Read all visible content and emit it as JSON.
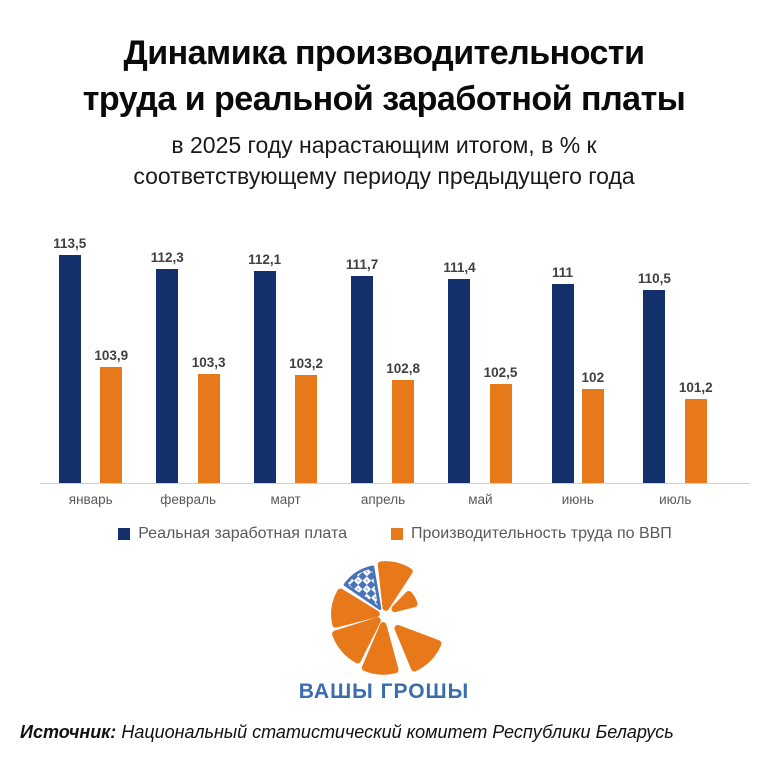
{
  "title": {
    "line1": "Динамика производительности",
    "line2": "труда и реальной заработной платы"
  },
  "subtitle": {
    "line1": "в 2025 году нарастающим итогом, в % к",
    "line2": "соответствующему периоду предыдущего года"
  },
  "chart_data": {
    "type": "bar",
    "title": "Динамика производительности труда и реальной заработной платы",
    "subtitle": "в 2025 году нарастающим итогом, в % к соответствующему периоду предыдущего года",
    "categories": [
      "январь",
      "февраль",
      "март",
      "апрель",
      "май",
      "июнь",
      "июль"
    ],
    "series": [
      {
        "name": "Реальная заработная плата",
        "color": "#13306b",
        "values": [
          113.5,
          112.3,
          112.1,
          111.7,
          111.4,
          111,
          110.5
        ],
        "labels": [
          "113,5",
          "112,3",
          "112,1",
          "111,7",
          "111,4",
          "111",
          "110,5"
        ]
      },
      {
        "name": "Производительность труда по ВВП",
        "color": "#e8791a",
        "values": [
          103.9,
          103.3,
          103.2,
          102.8,
          102.5,
          102,
          101.2
        ],
        "labels": [
          "103,9",
          "103,3",
          "103,2",
          "102,8",
          "102,5",
          "102",
          "101,2"
        ]
      }
    ],
    "xlabel": "",
    "ylabel": "",
    "axis_min": 94,
    "grid": false,
    "legend_position": "bottom",
    "data_labels": true
  },
  "colors": {
    "navy": "#13306b",
    "orange": "#e8791a",
    "logo_blue": "#3a6cae",
    "ornament_blue": "#4a72b8",
    "axis_text": "#595959",
    "value_label": "#404040"
  },
  "logo": {
    "text": "ВАШЫ ГРОШЫ"
  },
  "source": {
    "label": "Источник:",
    "text": " Национальный статистический комитет Республики Беларусь"
  }
}
